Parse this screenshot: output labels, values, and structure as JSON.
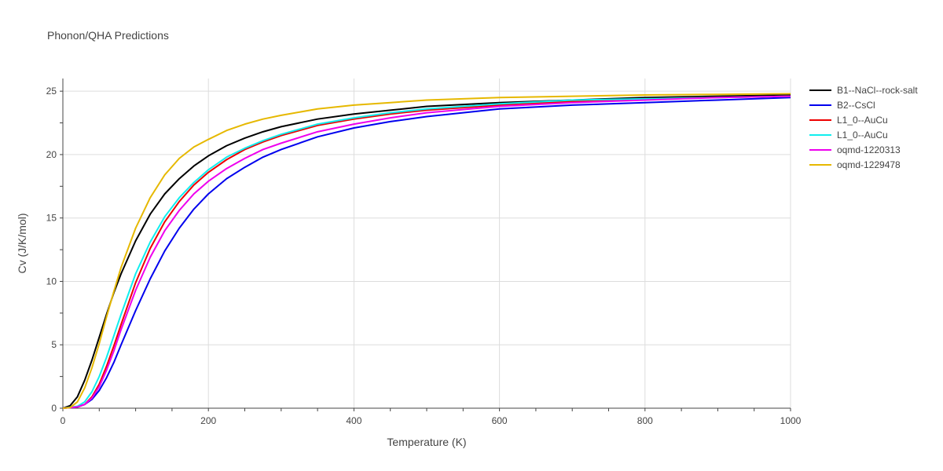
{
  "chart_data": {
    "type": "line",
    "title": "Phonon/QHA Predictions",
    "xlabel": "Temperature (K)",
    "ylabel": "Cv (J/K/mol)",
    "xlim": [
      0,
      1000
    ],
    "ylim": [
      0,
      26
    ],
    "x_ticks": [
      0,
      200,
      400,
      600,
      800,
      1000
    ],
    "y_ticks": [
      0,
      5,
      10,
      15,
      20,
      25
    ],
    "grid": true,
    "legend_position": "right",
    "series": [
      {
        "name": "B1--NaCl--rock-salt",
        "color": "#000000",
        "points": [
          [
            0,
            0
          ],
          [
            10,
            0.2
          ],
          [
            20,
            0.9
          ],
          [
            30,
            2.2
          ],
          [
            40,
            3.8
          ],
          [
            50,
            5.6
          ],
          [
            60,
            7.4
          ],
          [
            70,
            9.1
          ],
          [
            80,
            10.6
          ],
          [
            100,
            13.2
          ],
          [
            120,
            15.3
          ],
          [
            140,
            16.9
          ],
          [
            160,
            18.1
          ],
          [
            180,
            19.1
          ],
          [
            200,
            19.9
          ],
          [
            225,
            20.7
          ],
          [
            250,
            21.3
          ],
          [
            275,
            21.8
          ],
          [
            300,
            22.2
          ],
          [
            350,
            22.8
          ],
          [
            400,
            23.2
          ],
          [
            450,
            23.5
          ],
          [
            500,
            23.8
          ],
          [
            600,
            24.1
          ],
          [
            700,
            24.3
          ],
          [
            800,
            24.5
          ],
          [
            900,
            24.6
          ],
          [
            1000,
            24.7
          ]
        ]
      },
      {
        "name": "B2--CsCl",
        "color": "#0000ee",
        "points": [
          [
            0,
            0
          ],
          [
            20,
            0.1
          ],
          [
            30,
            0.3
          ],
          [
            40,
            0.7
          ],
          [
            50,
            1.4
          ],
          [
            60,
            2.4
          ],
          [
            70,
            3.6
          ],
          [
            80,
            5.0
          ],
          [
            100,
            7.7
          ],
          [
            120,
            10.2
          ],
          [
            140,
            12.4
          ],
          [
            160,
            14.2
          ],
          [
            180,
            15.7
          ],
          [
            200,
            16.9
          ],
          [
            225,
            18.1
          ],
          [
            250,
            19.0
          ],
          [
            275,
            19.8
          ],
          [
            300,
            20.4
          ],
          [
            350,
            21.4
          ],
          [
            400,
            22.1
          ],
          [
            450,
            22.6
          ],
          [
            500,
            23.0
          ],
          [
            600,
            23.6
          ],
          [
            700,
            23.9
          ],
          [
            800,
            24.1
          ],
          [
            900,
            24.3
          ],
          [
            1000,
            24.5
          ]
        ]
      },
      {
        "name": "L1_0--AuCu",
        "color": "#ee0000",
        "points": [
          [
            0,
            0
          ],
          [
            20,
            0.1
          ],
          [
            30,
            0.3
          ],
          [
            40,
            0.9
          ],
          [
            50,
            1.9
          ],
          [
            60,
            3.3
          ],
          [
            70,
            4.9
          ],
          [
            80,
            6.6
          ],
          [
            100,
            9.9
          ],
          [
            120,
            12.6
          ],
          [
            140,
            14.7
          ],
          [
            160,
            16.3
          ],
          [
            180,
            17.6
          ],
          [
            200,
            18.6
          ],
          [
            225,
            19.6
          ],
          [
            250,
            20.4
          ],
          [
            275,
            21.0
          ],
          [
            300,
            21.5
          ],
          [
            350,
            22.3
          ],
          [
            400,
            22.8
          ],
          [
            450,
            23.2
          ],
          [
            500,
            23.5
          ],
          [
            600,
            23.9
          ],
          [
            700,
            24.2
          ],
          [
            800,
            24.4
          ],
          [
            900,
            24.5
          ],
          [
            1000,
            24.6
          ]
        ]
      },
      {
        "name": "L1_0--AuCu",
        "color": "#11eeee",
        "points": [
          [
            0,
            0
          ],
          [
            20,
            0.15
          ],
          [
            30,
            0.5
          ],
          [
            40,
            1.3
          ],
          [
            50,
            2.5
          ],
          [
            60,
            4.0
          ],
          [
            70,
            5.7
          ],
          [
            80,
            7.4
          ],
          [
            100,
            10.6
          ],
          [
            120,
            13.1
          ],
          [
            140,
            15.1
          ],
          [
            160,
            16.6
          ],
          [
            180,
            17.8
          ],
          [
            200,
            18.8
          ],
          [
            225,
            19.8
          ],
          [
            250,
            20.5
          ],
          [
            275,
            21.1
          ],
          [
            300,
            21.6
          ],
          [
            350,
            22.4
          ],
          [
            400,
            22.9
          ],
          [
            450,
            23.3
          ],
          [
            500,
            23.6
          ],
          [
            600,
            24.0
          ],
          [
            700,
            24.3
          ],
          [
            800,
            24.4
          ],
          [
            900,
            24.5
          ],
          [
            1000,
            24.6
          ]
        ]
      },
      {
        "name": "oqmd-1220313",
        "color": "#ee00ee",
        "points": [
          [
            0,
            0
          ],
          [
            20,
            0.1
          ],
          [
            30,
            0.3
          ],
          [
            40,
            0.8
          ],
          [
            50,
            1.7
          ],
          [
            60,
            3.0
          ],
          [
            70,
            4.5
          ],
          [
            80,
            6.2
          ],
          [
            100,
            9.3
          ],
          [
            120,
            11.9
          ],
          [
            140,
            14.0
          ],
          [
            160,
            15.6
          ],
          [
            180,
            16.9
          ],
          [
            200,
            17.9
          ],
          [
            225,
            18.9
          ],
          [
            250,
            19.7
          ],
          [
            275,
            20.4
          ],
          [
            300,
            20.9
          ],
          [
            350,
            21.8
          ],
          [
            400,
            22.4
          ],
          [
            450,
            22.9
          ],
          [
            500,
            23.3
          ],
          [
            600,
            23.8
          ],
          [
            700,
            24.1
          ],
          [
            800,
            24.3
          ],
          [
            900,
            24.5
          ],
          [
            1000,
            24.6
          ]
        ]
      },
      {
        "name": "oqmd-1229478",
        "color": "#e6b800",
        "points": [
          [
            0,
            0
          ],
          [
            10,
            0.05
          ],
          [
            20,
            0.5
          ],
          [
            30,
            1.6
          ],
          [
            40,
            3.2
          ],
          [
            50,
            5.1
          ],
          [
            60,
            7.2
          ],
          [
            70,
            9.2
          ],
          [
            80,
            11.1
          ],
          [
            100,
            14.2
          ],
          [
            120,
            16.6
          ],
          [
            140,
            18.4
          ],
          [
            160,
            19.7
          ],
          [
            180,
            20.6
          ],
          [
            200,
            21.2
          ],
          [
            225,
            21.9
          ],
          [
            250,
            22.4
          ],
          [
            275,
            22.8
          ],
          [
            300,
            23.1
          ],
          [
            350,
            23.6
          ],
          [
            400,
            23.9
          ],
          [
            450,
            24.1
          ],
          [
            500,
            24.3
          ],
          [
            600,
            24.5
          ],
          [
            700,
            24.6
          ],
          [
            800,
            24.7
          ],
          [
            900,
            24.75
          ],
          [
            1000,
            24.8
          ]
        ]
      }
    ]
  }
}
